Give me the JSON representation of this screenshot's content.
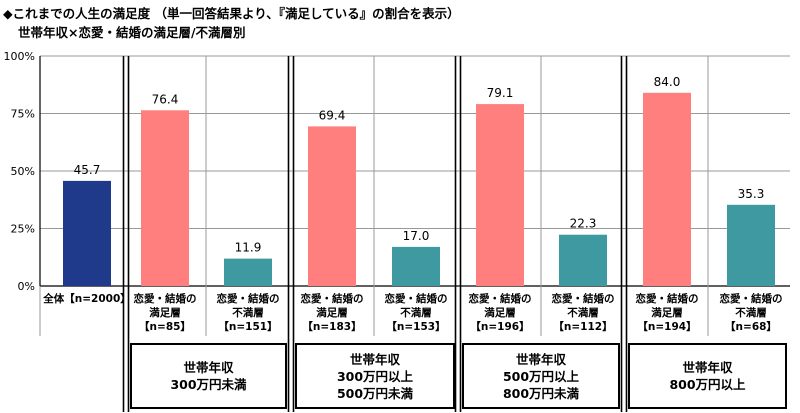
{
  "title_line1": "◆これまでの人生の満足度 （単一回答結果より、『満足している』の割合を表示）",
  "title_line2": "世帯年収×恋愛・結婚の満足層/不満層別",
  "colors": {
    "total": "#1f3a8a",
    "satisfied": "#ff7f7f",
    "unsatisfied": "#3e9aa0"
  },
  "chart_data": {
    "type": "bar",
    "ylim": [
      0,
      100
    ],
    "yticks": [
      "0%",
      "25%",
      "50%",
      "75%",
      "100%"
    ],
    "categories": [
      {
        "line1": "全体【n=2000】",
        "line2": "",
        "line3": ""
      },
      {
        "line1": "恋愛・結婚の",
        "line2": "満足層",
        "line3": "【n=85】"
      },
      {
        "line1": "恋愛・結婚の",
        "line2": "不満層",
        "line3": "【n=151】"
      },
      {
        "line1": "恋愛・結婚の",
        "line2": "満足層",
        "line3": "【n=183】"
      },
      {
        "line1": "恋愛・結婚の",
        "line2": "不満層",
        "line3": "【n=153】"
      },
      {
        "line1": "恋愛・結婚の",
        "line2": "満足層",
        "line3": "【n=196】"
      },
      {
        "line1": "恋愛・結婚の",
        "line2": "不満層",
        "line3": "【n=112】"
      },
      {
        "line1": "恋愛・結婚の",
        "line2": "満足層",
        "line3": "【n=194】"
      },
      {
        "line1": "恋愛・結婚の",
        "line2": "不満層",
        "line3": "【n=68】"
      }
    ],
    "values": [
      45.7,
      76.4,
      11.9,
      69.4,
      17.0,
      79.1,
      22.3,
      84.0,
      35.3
    ],
    "value_labels": [
      "45.7",
      "76.4",
      "11.9",
      "69.4",
      "17.0",
      "79.1",
      "22.3",
      "84.0",
      "35.3"
    ],
    "bar_kinds": [
      "total",
      "satisfied",
      "unsatisfied",
      "satisfied",
      "unsatisfied",
      "satisfied",
      "unsatisfied",
      "satisfied",
      "unsatisfied"
    ],
    "groups": [
      {
        "line1": "世帯年収",
        "line2": "300万円未満",
        "line3": ""
      },
      {
        "line1": "世帯年収",
        "line2": "300万円以上",
        "line3": "500万円未満"
      },
      {
        "line1": "世帯年収",
        "line2": "500万円以上",
        "line3": "800万円未満"
      },
      {
        "line1": "世帯年収",
        "line2": "800万円以上",
        "line3": ""
      }
    ]
  }
}
